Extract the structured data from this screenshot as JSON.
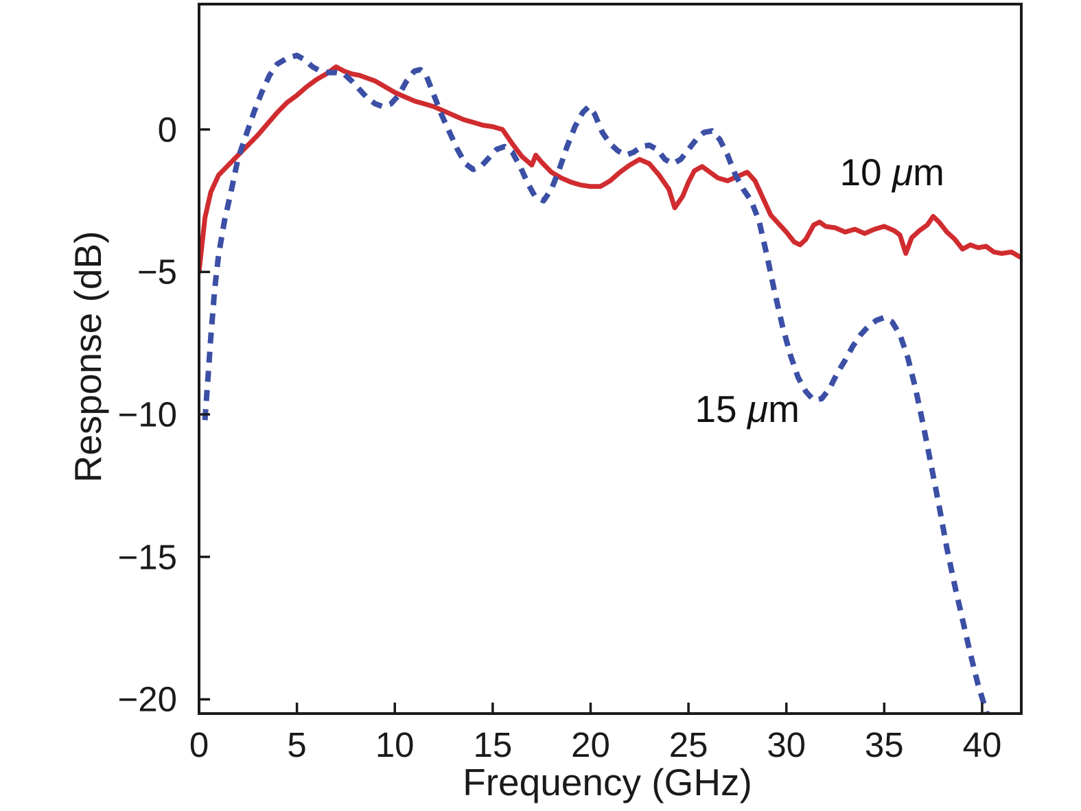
{
  "figure": {
    "background": "#ffffff",
    "frame_color": "#1a1a1a"
  },
  "chart_data": {
    "type": "line",
    "title": "",
    "xlabel": "Frequency (GHz)",
    "ylabel": "Response (dB)",
    "xlim": [
      0,
      42
    ],
    "ylim": [
      -20.5,
      4.4
    ],
    "xticks": [
      0,
      5,
      10,
      15,
      20,
      25,
      30,
      35,
      40
    ],
    "xtick_labels": [
      "0",
      "5",
      "10",
      "15",
      "20",
      "25",
      "30",
      "35",
      "40"
    ],
    "yticks": [
      0,
      -5,
      -10,
      -15,
      -20
    ],
    "ytick_labels": [
      "0",
      "−5",
      "−10",
      "−15",
      "−20"
    ],
    "grid": false,
    "legend_position": "none",
    "annotations": [
      {
        "text": "10 μm",
        "x": 35.4,
        "y": -1.5
      },
      {
        "text": "15 μm",
        "x": 28.0,
        "y": -9.8
      }
    ],
    "series": [
      {
        "name": "10 μm",
        "color": "#d02c2f",
        "style": "solid",
        "width": 7,
        "dash": "",
        "x": [
          0,
          0.3,
          0.6,
          1,
          1.5,
          2,
          2.5,
          3,
          3.5,
          4,
          4.5,
          5,
          5.5,
          6,
          6.5,
          7,
          7.4,
          7.8,
          8.2,
          8.6,
          9,
          9.5,
          10,
          10.5,
          11,
          11.5,
          12,
          12.5,
          13,
          13.5,
          14,
          14.5,
          15,
          15.5,
          16,
          16.5,
          17,
          17.2,
          17.5,
          18,
          18.5,
          19,
          19.5,
          20,
          20.5,
          21,
          21.5,
          22,
          22.5,
          23,
          23.5,
          24,
          24.3,
          24.7,
          25,
          25.3,
          25.7,
          26,
          26.5,
          27,
          27.5,
          28,
          28.4,
          28.8,
          29.2,
          29.6,
          30,
          30.4,
          30.7,
          31,
          31.4,
          31.7,
          32,
          32.5,
          33,
          33.5,
          34,
          34.5,
          35,
          35.5,
          35.8,
          36.1,
          36.4,
          36.8,
          37.2,
          37.5,
          37.8,
          38.2,
          38.6,
          39,
          39.4,
          39.8,
          40.2,
          40.6,
          41,
          41.5,
          42
        ],
        "y": [
          -5.0,
          -3.1,
          -2.2,
          -1.6,
          -1.25,
          -0.9,
          -0.55,
          -0.2,
          0.2,
          0.6,
          0.95,
          1.2,
          1.5,
          1.75,
          1.95,
          2.2,
          2.05,
          1.95,
          1.9,
          1.8,
          1.7,
          1.5,
          1.3,
          1.15,
          1.0,
          0.9,
          0.8,
          0.65,
          0.5,
          0.35,
          0.25,
          0.15,
          0.1,
          0.0,
          -0.5,
          -0.95,
          -1.25,
          -0.9,
          -1.15,
          -1.5,
          -1.7,
          -1.85,
          -1.95,
          -2.0,
          -2.0,
          -1.8,
          -1.5,
          -1.25,
          -1.05,
          -1.2,
          -1.6,
          -2.1,
          -2.75,
          -2.35,
          -1.85,
          -1.45,
          -1.3,
          -1.45,
          -1.7,
          -1.8,
          -1.65,
          -1.5,
          -1.8,
          -2.4,
          -3.0,
          -3.3,
          -3.6,
          -3.95,
          -4.05,
          -3.85,
          -3.35,
          -3.25,
          -3.4,
          -3.45,
          -3.6,
          -3.5,
          -3.65,
          -3.5,
          -3.4,
          -3.55,
          -3.7,
          -4.35,
          -3.8,
          -3.55,
          -3.35,
          -3.05,
          -3.25,
          -3.6,
          -3.85,
          -4.2,
          -4.05,
          -4.15,
          -4.1,
          -4.3,
          -4.35,
          -4.3,
          -4.5
        ]
      },
      {
        "name": "15 μm",
        "color": "#3b4fa5",
        "style": "dashed",
        "width": 8,
        "dash": "16 12",
        "x": [
          0.3,
          0.45,
          0.6,
          0.8,
          1,
          1.3,
          1.6,
          2,
          2.4,
          2.8,
          3.2,
          3.6,
          4,
          4.5,
          5,
          5.4,
          5.8,
          6.2,
          6.6,
          7,
          7.4,
          7.8,
          8.2,
          8.6,
          9,
          9.4,
          9.8,
          10.2,
          10.6,
          11,
          11.3,
          11.6,
          12,
          12.4,
          12.8,
          13.2,
          13.6,
          14,
          14.4,
          14.8,
          15.2,
          15.6,
          16,
          16.4,
          16.8,
          17.2,
          17.6,
          18,
          18.4,
          18.8,
          19.2,
          19.6,
          19.9,
          20.2,
          20.6,
          21,
          21.4,
          21.8,
          22.2,
          22.6,
          23,
          23.4,
          23.8,
          24.2,
          24.6,
          25,
          25.4,
          25.8,
          26.2,
          26.6,
          27,
          27.4,
          27.8,
          28.2,
          28.6,
          29,
          29.4,
          29.8,
          30.2,
          30.6,
          31,
          31.4,
          31.8,
          32.2,
          32.6,
          33,
          33.4,
          33.8,
          34.2,
          34.6,
          35,
          35.4,
          35.8,
          36.2,
          36.6,
          37,
          37.4,
          37.8,
          38.2,
          38.6,
          39,
          39.4,
          39.8,
          40.2,
          40.6
        ],
        "y": [
          -10.2,
          -8.8,
          -7.3,
          -5.6,
          -4.4,
          -3.2,
          -2.3,
          -1.0,
          -0.2,
          0.6,
          1.3,
          1.9,
          2.3,
          2.5,
          2.6,
          2.45,
          2.2,
          2.05,
          2.0,
          2.0,
          1.95,
          1.7,
          1.4,
          1.1,
          0.9,
          0.8,
          0.9,
          1.2,
          1.7,
          2.05,
          2.1,
          1.9,
          1.2,
          0.5,
          -0.1,
          -0.7,
          -1.2,
          -1.4,
          -1.3,
          -1.0,
          -0.7,
          -0.6,
          -0.8,
          -1.3,
          -1.9,
          -2.4,
          -2.5,
          -2.1,
          -1.4,
          -0.6,
          0.1,
          0.6,
          0.8,
          0.55,
          -0.1,
          -0.5,
          -0.75,
          -0.9,
          -0.8,
          -0.6,
          -0.55,
          -0.7,
          -1.05,
          -1.2,
          -1.05,
          -0.7,
          -0.35,
          -0.1,
          -0.05,
          -0.35,
          -0.9,
          -1.6,
          -2.1,
          -2.5,
          -3.2,
          -4.4,
          -5.7,
          -6.9,
          -7.9,
          -8.7,
          -9.2,
          -9.5,
          -9.45,
          -9.1,
          -8.55,
          -8.1,
          -7.6,
          -7.2,
          -6.9,
          -6.7,
          -6.6,
          -6.75,
          -7.2,
          -8.0,
          -9.1,
          -10.4,
          -11.8,
          -13.2,
          -14.7,
          -16.0,
          -17.2,
          -18.4,
          -19.5,
          -20.4,
          -21.3
        ]
      }
    ]
  }
}
